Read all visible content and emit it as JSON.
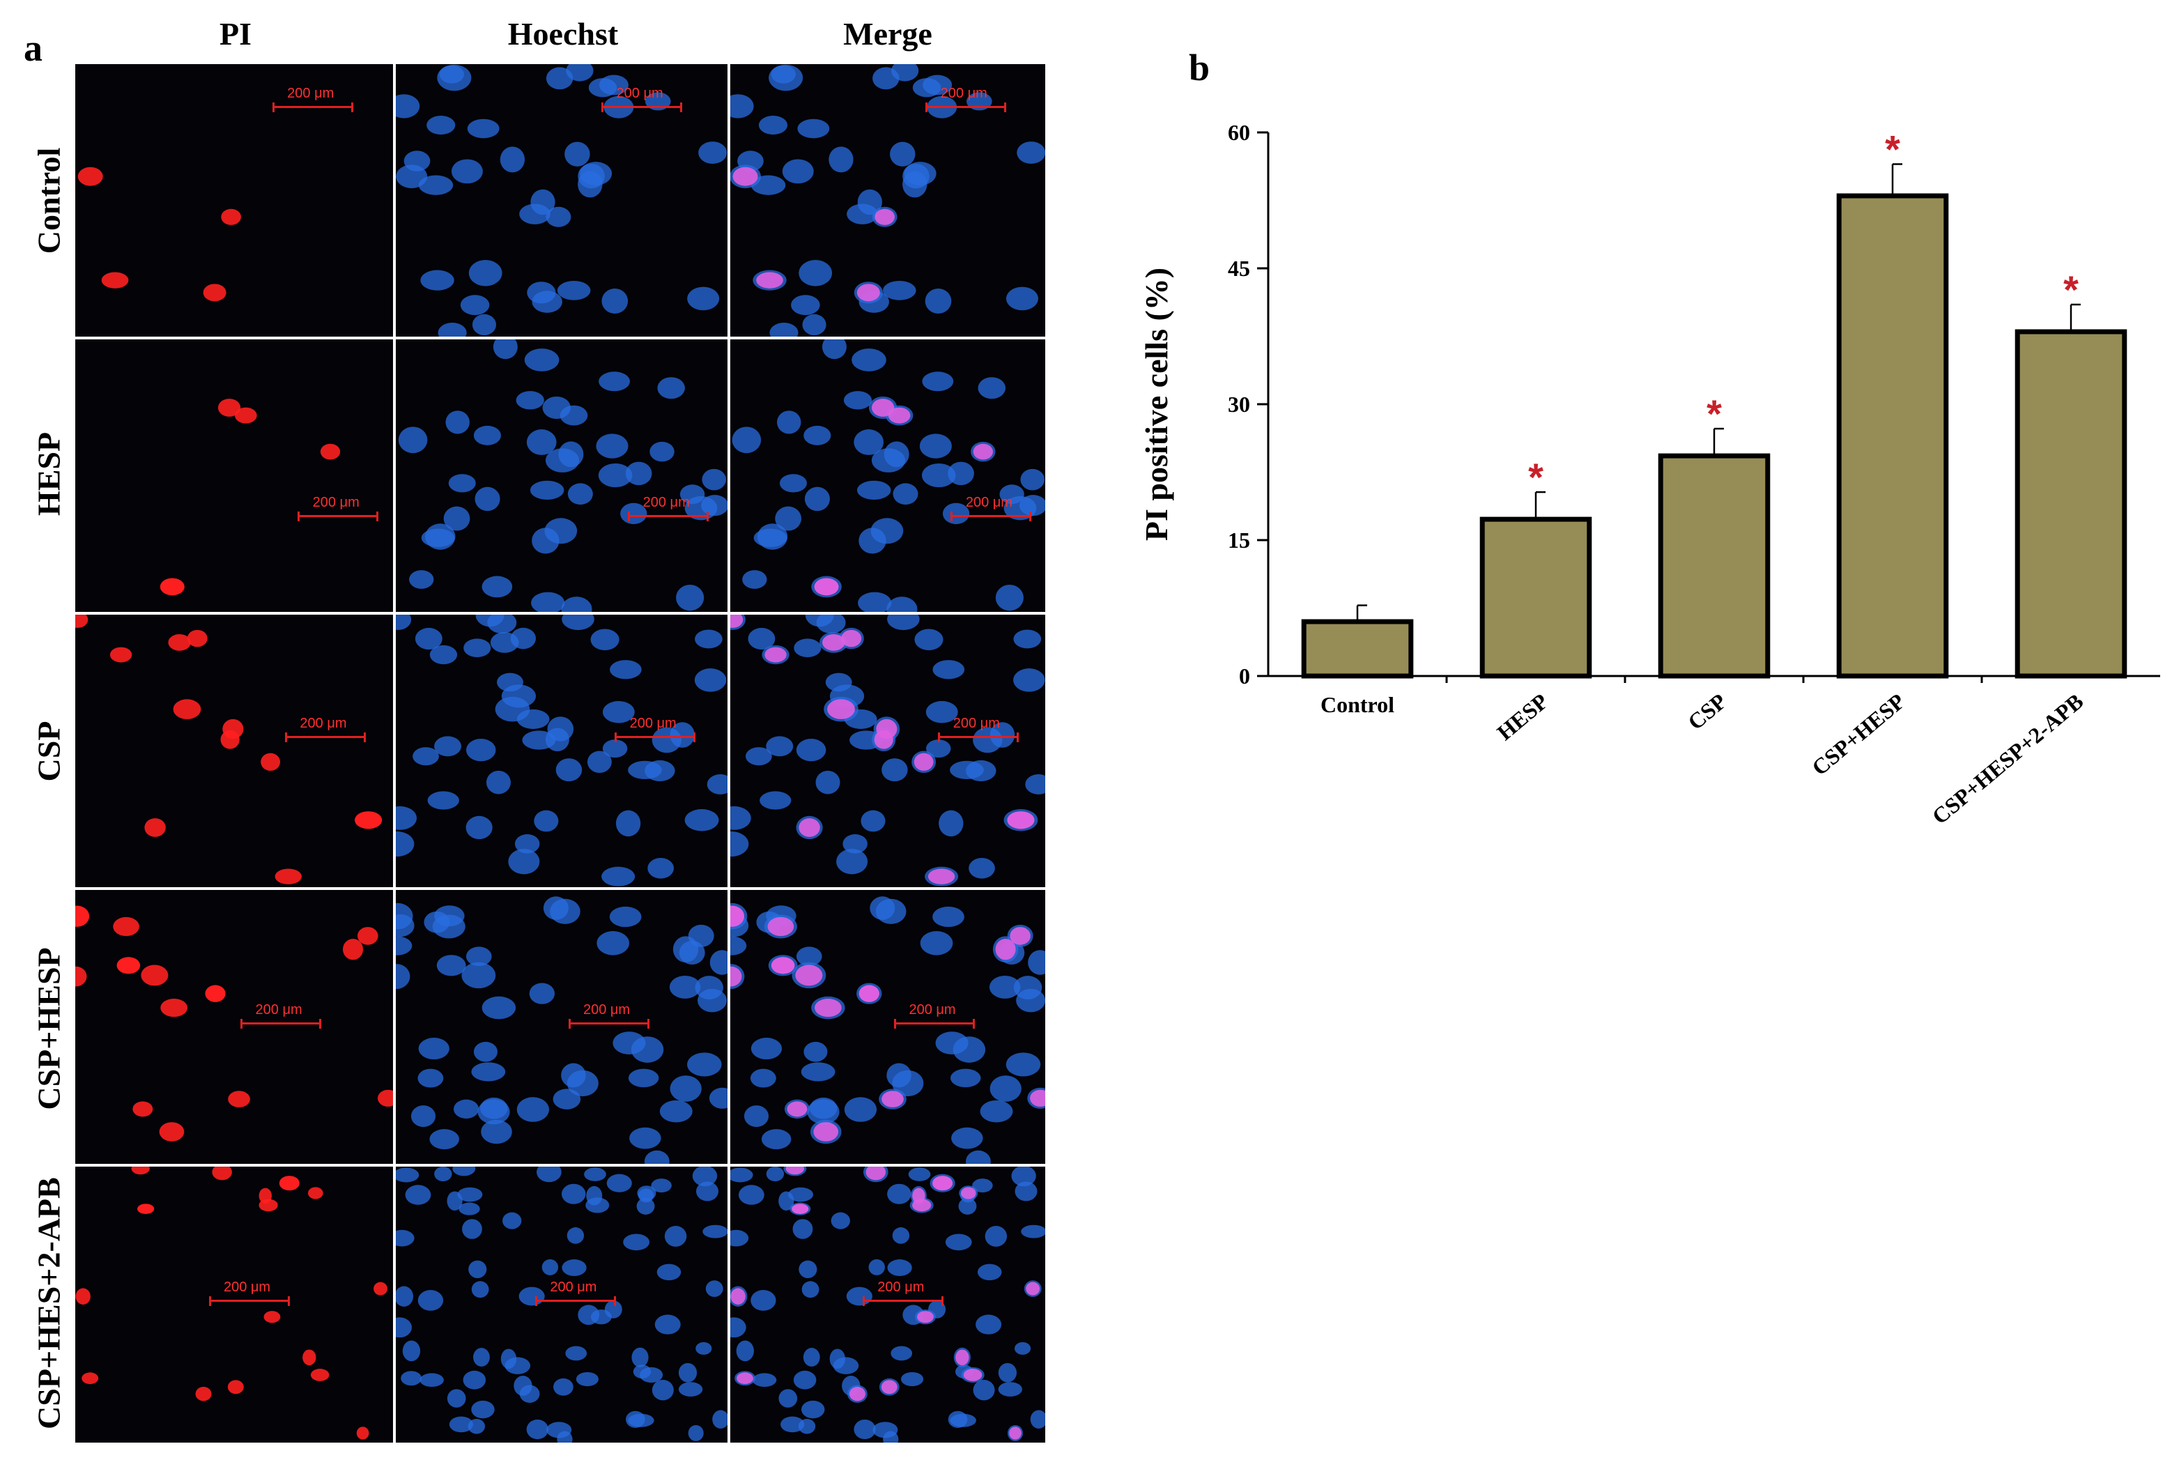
{
  "panel_a": {
    "letter": "a",
    "columns": [
      "PI",
      "Hoechst",
      "Merge"
    ],
    "rows": [
      "Control",
      "HESP",
      "CSP",
      "CSP+HESP",
      "CSP+HES+2-APB"
    ],
    "scale_bar_label": "200 μm",
    "channel_colors": {
      "PI": "#ff2020",
      "Hoechst": "#2a6ee0",
      "Merge": "#e060e0"
    }
  },
  "panel_b": {
    "letter": "b",
    "significance_symbol": "*",
    "colors": {
      "bar": "#968c56",
      "outline": "#000000",
      "star": "#c8202a"
    }
  },
  "chart_data": {
    "type": "bar",
    "categories": [
      "Control",
      "HESP",
      "CSP",
      "CSP+HESP",
      "CSP+HESP+2-APB"
    ],
    "values": [
      6,
      17.3,
      24.3,
      53,
      38
    ],
    "errors": [
      1.8,
      3,
      3,
      3.5,
      3
    ],
    "significant": [
      false,
      true,
      true,
      true,
      true
    ],
    "ylabel": "PI positive cells (%)",
    "xlabel": "",
    "ylim": [
      0,
      60
    ],
    "yticks": [
      0,
      15,
      30,
      45,
      60
    ],
    "grid": false,
    "legend": "none"
  }
}
